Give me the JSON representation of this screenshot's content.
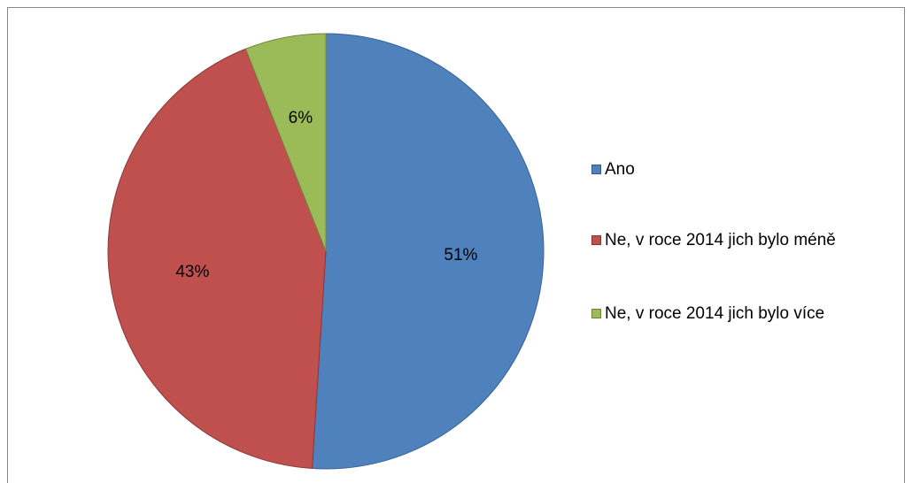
{
  "chart_data": {
    "type": "pie",
    "categories": [
      "Ano",
      "Ne, v roce 2014 jich bylo méně",
      "Ne, v roce 2014 jich bylo více"
    ],
    "values": [
      51,
      43,
      6
    ],
    "value_labels": [
      "51%",
      "43%",
      "6%"
    ],
    "colors": [
      "#4f81bd",
      "#c0504d",
      "#9bbb59"
    ],
    "legend": "right"
  }
}
